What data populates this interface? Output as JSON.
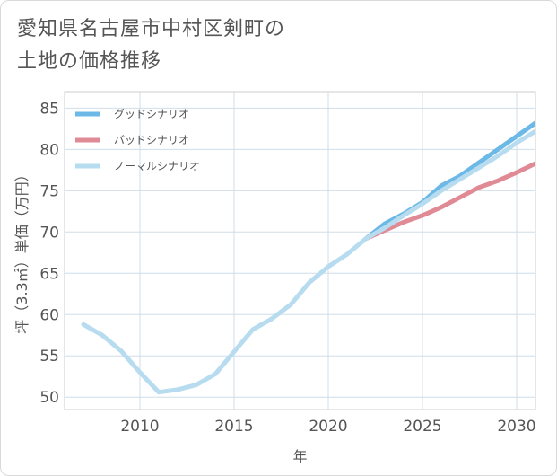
{
  "title": "愛知県名古屋市中村区剣町の\n土地の価格推移",
  "chart_data": {
    "type": "line",
    "xlabel": "年",
    "ylabel": "坪（3.3㎡）単価（万円）",
    "xlim": [
      2006,
      2031
    ],
    "ylim": [
      48.5,
      87
    ],
    "xticks": [
      2010,
      2015,
      2020,
      2025,
      2030
    ],
    "yticks": [
      50,
      55,
      60,
      65,
      70,
      75,
      80,
      85
    ],
    "grid": true,
    "legend_position": "top-left",
    "series": [
      {
        "name": "グッドシナリオ",
        "color": "#6cb8e6",
        "x": [
          2022,
          2023,
          2024,
          2025,
          2026,
          2027,
          2028,
          2029,
          2030,
          2031
        ],
        "y": [
          69.2,
          71.0,
          72.2,
          73.6,
          75.6,
          76.8,
          78.4,
          80.0,
          81.6,
          83.2
        ]
      },
      {
        "name": "バッドシナリオ",
        "color": "#e08a95",
        "x": [
          2022,
          2023,
          2024,
          2025,
          2026,
          2027,
          2028,
          2029,
          2030,
          2031
        ],
        "y": [
          69.2,
          70.2,
          71.2,
          72.0,
          73.0,
          74.2,
          75.4,
          76.2,
          77.2,
          78.3
        ]
      },
      {
        "name": "ノーマルシナリオ",
        "color": "#b7dcef",
        "x": [
          2007,
          2008,
          2009,
          2010,
          2011,
          2012,
          2013,
          2014,
          2015,
          2016,
          2017,
          2018,
          2019,
          2020,
          2021,
          2022,
          2023,
          2024,
          2025,
          2026,
          2027,
          2028,
          2029,
          2030,
          2031
        ],
        "y": [
          58.8,
          57.5,
          55.6,
          53.0,
          50.6,
          50.9,
          51.5,
          52.8,
          55.5,
          58.2,
          59.5,
          61.2,
          63.9,
          65.8,
          67.3,
          69.2,
          70.5,
          72.0,
          73.4,
          75.0,
          76.4,
          77.8,
          79.2,
          80.8,
          82.2
        ]
      }
    ]
  }
}
